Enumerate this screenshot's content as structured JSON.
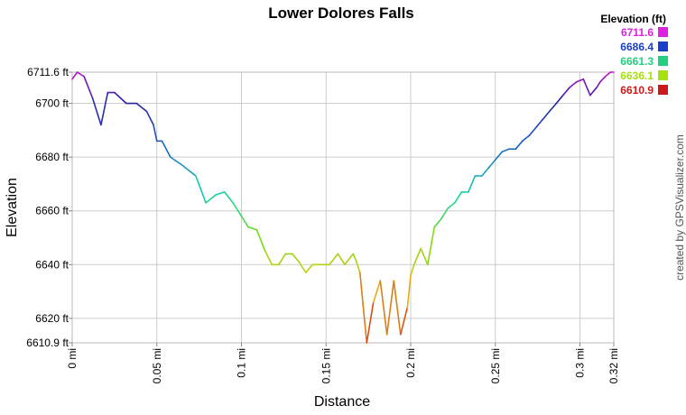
{
  "chart_data": {
    "type": "line",
    "title": "Lower Dolores Falls",
    "xlabel": "Distance",
    "ylabel": "Elevation",
    "xlim": [
      0,
      0.32
    ],
    "ylim": [
      6610.9,
      6711.6
    ],
    "grid": true,
    "x_ticks": [
      {
        "value": 0,
        "label": "0 mi"
      },
      {
        "value": 0.05,
        "label": "0.05 mi"
      },
      {
        "value": 0.1,
        "label": "0.1 mi"
      },
      {
        "value": 0.15,
        "label": "0.15 mi"
      },
      {
        "value": 0.2,
        "label": "0.2 mi"
      },
      {
        "value": 0.25,
        "label": "0.25 mi"
      },
      {
        "value": 0.3,
        "label": "0.3 mi"
      },
      {
        "value": 0.32,
        "label": "0.32 mi"
      }
    ],
    "y_ticks": [
      {
        "value": 6610.9,
        "label": "6610.9 ft"
      },
      {
        "value": 6620,
        "label": "6620 ft"
      },
      {
        "value": 6640,
        "label": "6640 ft"
      },
      {
        "value": 6660,
        "label": "6660 ft"
      },
      {
        "value": 6680,
        "label": "6680 ft"
      },
      {
        "value": 6700,
        "label": "6700 ft"
      },
      {
        "value": 6711.6,
        "label": "6711.6 ft"
      }
    ],
    "legend": {
      "title": "Elevation (ft)",
      "placement": "top-right",
      "entries": [
        {
          "label": "6711.6",
          "color": "#e020e0"
        },
        {
          "label": "6686.4",
          "color": "#1a3fcc"
        },
        {
          "label": "6661.3",
          "color": "#20d080"
        },
        {
          "label": "6636.1",
          "color": "#a8e010"
        },
        {
          "label": "6610.9",
          "color": "#cc1a1a"
        }
      ]
    },
    "series": [
      {
        "x": [
          0,
          0.003,
          0.007,
          0.012,
          0.017,
          0.021,
          0.025,
          0.032,
          0.038,
          0.044,
          0.048,
          0.05,
          0.053,
          0.058,
          0.065,
          0.073,
          0.079,
          0.085,
          0.09,
          0.095,
          0.1,
          0.104,
          0.109,
          0.114,
          0.118,
          0.122,
          0.126,
          0.13,
          0.134,
          0.138,
          0.142,
          0.148,
          0.15,
          0.152,
          0.157,
          0.161,
          0.166,
          0.168,
          0.17,
          0.174,
          0.178,
          0.182,
          0.186,
          0.19,
          0.194,
          0.198,
          0.2,
          0.202,
          0.206,
          0.21,
          0.214,
          0.218,
          0.222,
          0.226,
          0.23,
          0.234,
          0.238,
          0.242,
          0.246,
          0.25,
          0.254,
          0.258,
          0.262,
          0.266,
          0.27,
          0.274,
          0.278,
          0.282,
          0.286,
          0.29,
          0.294,
          0.298,
          0.302,
          0.306,
          0.31,
          0.312,
          0.315,
          0.318,
          0.32
        ],
        "y": [
          6709,
          6711.6,
          6710,
          6702,
          6692,
          6704,
          6704,
          6700,
          6700,
          6697,
          6692,
          6686,
          6686,
          6680,
          6677,
          6673,
          6663,
          6666,
          6667,
          6663,
          6658,
          6654,
          6653,
          6645,
          6640,
          6640,
          6644,
          6644,
          6641,
          6637,
          6640,
          6640,
          6640,
          6640,
          6644,
          6640,
          6644,
          6641,
          6637,
          6610.9,
          6626,
          6634,
          6614,
          6634,
          6614,
          6624,
          6636,
          6640,
          6646,
          6640,
          6654,
          6657,
          6661,
          6663,
          6667,
          6667,
          6673,
          6673,
          6676,
          6679,
          6682,
          6683,
          6683,
          6686,
          6688,
          6691,
          6694,
          6697,
          6700,
          6703,
          6706,
          6708,
          6709,
          6703,
          6706,
          6708,
          6710,
          6711.6,
          6711.6
        ]
      }
    ]
  },
  "credit": "created by GPSVisualizer.com"
}
